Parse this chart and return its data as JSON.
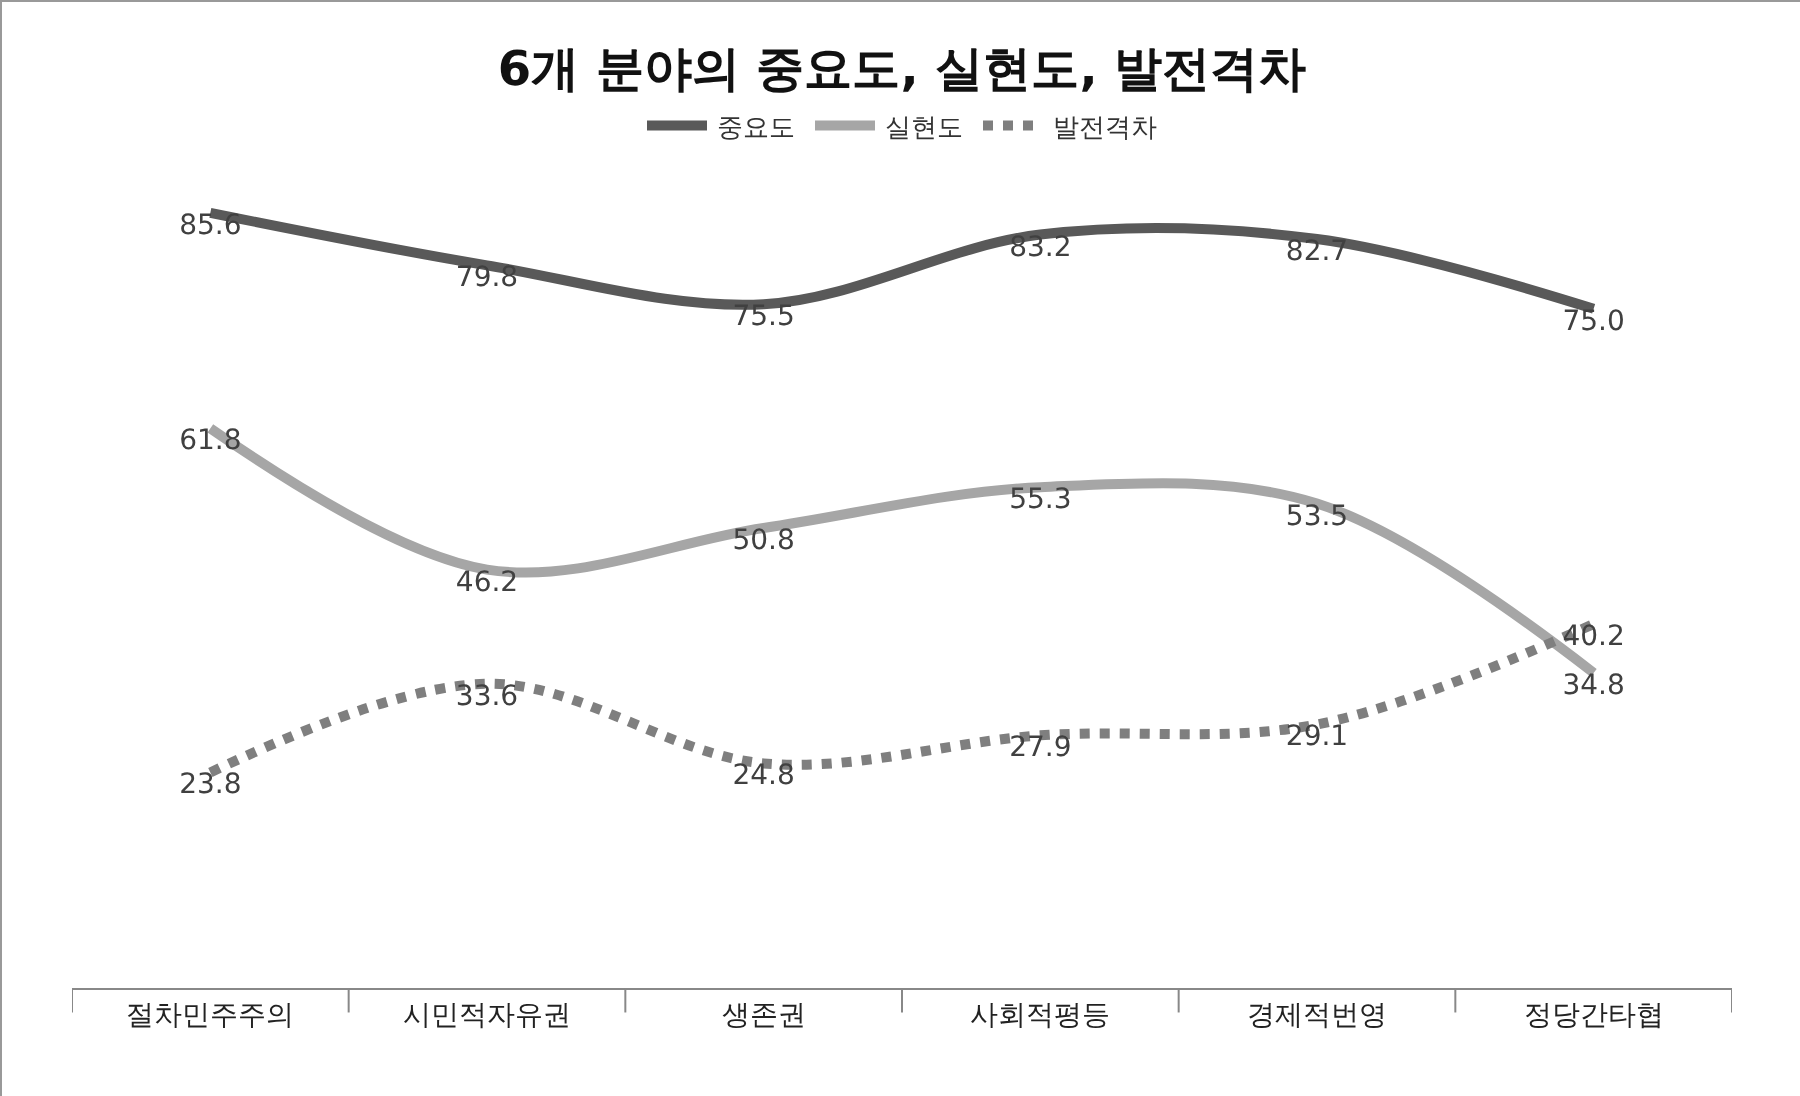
{
  "chart_data": {
    "type": "line",
    "title": "6개 분야의 중요도, 실현도, 발전격차",
    "categories": [
      "절차민주주의",
      "시민적자유권",
      "생존권",
      "사회적평등",
      "경제적번영",
      "정당간타협"
    ],
    "series": [
      {
        "name": "중요도",
        "color": "#595959",
        "line_style": "solid",
        "values": [
          85.6,
          79.8,
          75.5,
          83.2,
          82.7,
          75.0
        ],
        "value_labels": [
          "85.6",
          "79.8",
          "75.5",
          "83.2",
          "82.7",
          "75.0"
        ]
      },
      {
        "name": "실현도",
        "color": "#a6a6a6",
        "line_style": "solid",
        "values": [
          61.8,
          46.2,
          50.8,
          55.3,
          53.5,
          34.8
        ],
        "value_labels": [
          "61.8",
          "46.2",
          "50.8",
          "55.3",
          "53.5",
          "34.8"
        ]
      },
      {
        "name": "발전격차",
        "color": "#7f7f7f",
        "line_style": "dotted",
        "values": [
          23.8,
          33.6,
          24.8,
          27.9,
          29.1,
          40.2
        ],
        "value_labels": [
          "23.8",
          "33.6",
          "24.8",
          "27.9",
          "29.1",
          "40.2"
        ]
      }
    ],
    "grid": false,
    "legend": "top",
    "marker": "none",
    "tick_labels": "x"
  }
}
